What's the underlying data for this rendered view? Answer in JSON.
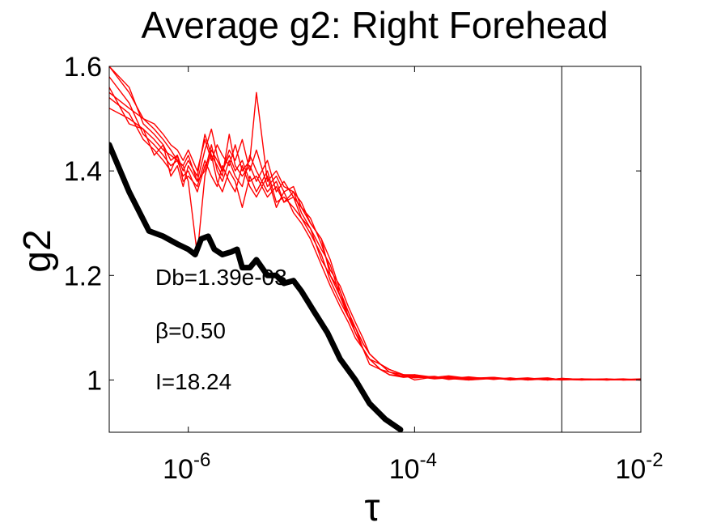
{
  "chart_data": {
    "type": "line",
    "title": "Average g2: Right Forehead",
    "xlabel": "τ",
    "ylabel": "g2",
    "xscale": "log",
    "xlim": [
      2e-07,
      0.01
    ],
    "ylim": [
      0.9,
      1.6
    ],
    "grid": false,
    "x_ticks": [
      {
        "value": 1e-06,
        "base": "10",
        "exp": "-6"
      },
      {
        "value": 0.0001,
        "base": "10",
        "exp": "-4"
      },
      {
        "value": 0.01,
        "base": "10",
        "exp": "-2"
      }
    ],
    "y_ticks": [
      {
        "value": 1.0,
        "label": "1"
      },
      {
        "value": 1.2,
        "label": "1.2"
      },
      {
        "value": 1.4,
        "label": "1.4"
      },
      {
        "value": 1.6,
        "label": "1.6"
      }
    ],
    "vline": {
      "x": 0.002,
      "color": "#000000"
    },
    "annotations": [
      "Db=1.39e-03",
      "β=0.50",
      "I=18.24"
    ],
    "colors": {
      "measured": "#ff0000",
      "fit": "#000000"
    },
    "fit_curve": {
      "color": "#000000",
      "x": [
        2e-07,
        3e-07,
        4.5e-07,
        6e-07,
        8e-07,
        1e-06,
        1.15e-06,
        1.3e-06,
        1.5e-06,
        1.7e-06,
        2e-06,
        2.4e-06,
        2.7e-06,
        3e-06,
        3.5e-06,
        4e-06,
        5e-06,
        6e-06,
        7e-06,
        8.5e-06,
        1e-05,
        1.3e-05,
        1.7e-05,
        2.2e-05,
        3e-05,
        4e-05,
        5.5e-05,
        7.5e-05
      ],
      "y": [
        1.45,
        1.36,
        1.285,
        1.275,
        1.26,
        1.25,
        1.24,
        1.27,
        1.275,
        1.25,
        1.24,
        1.245,
        1.25,
        1.215,
        1.215,
        1.23,
        1.2,
        1.2,
        1.185,
        1.19,
        1.17,
        1.13,
        1.09,
        1.04,
        1.0,
        0.955,
        0.925,
        0.905
      ]
    },
    "series": [
      {
        "x": [
          2e-07,
          3e-07,
          4e-07,
          5e-07,
          6e-07,
          7e-07,
          8e-07,
          9e-07,
          1e-06,
          1.2e-06,
          1.4e-06,
          1.6e-06,
          1.8e-06,
          2e-06,
          2.3e-06,
          2.6e-06,
          3e-06,
          3.5e-06,
          4e-06,
          5e-06,
          6e-06,
          7e-06,
          8.5e-06,
          1e-05,
          1.2e-05,
          1.5e-05,
          1.8e-05,
          2.2e-05,
          2.6e-05,
          3e-05,
          3.5e-05,
          4e-05,
          5e-05,
          6e-05,
          8e-05,
          0.0001,
          0.00015,
          0.0002,
          0.0003,
          0.0005,
          0.0007,
          0.001,
          0.0015,
          0.002,
          0.003,
          0.005,
          0.007,
          0.01
        ],
        "y": [
          1.6,
          1.56,
          1.49,
          1.47,
          1.45,
          1.42,
          1.43,
          1.4,
          1.42,
          1.39,
          1.47,
          1.43,
          1.41,
          1.39,
          1.47,
          1.41,
          1.39,
          1.41,
          1.38,
          1.42,
          1.36,
          1.38,
          1.35,
          1.33,
          1.3,
          1.27,
          1.2,
          1.17,
          1.12,
          1.1,
          1.06,
          1.04,
          1.03,
          1.02,
          1.01,
          1.01,
          1.005,
          1.008,
          1.003,
          1.005,
          1.002,
          1.004,
          1.0,
          1.003,
          1.001,
          1.002,
          1.0,
          1.001
        ]
      },
      {
        "x": [
          2e-07,
          3e-07,
          4e-07,
          5e-07,
          6e-07,
          7e-07,
          8e-07,
          9e-07,
          1e-06,
          1.2e-06,
          1.4e-06,
          1.6e-06,
          1.8e-06,
          2e-06,
          2.3e-06,
          2.6e-06,
          3e-06,
          3.5e-06,
          4e-06,
          5e-06,
          6e-06,
          7e-06,
          8.5e-06,
          1e-05,
          1.2e-05,
          1.5e-05,
          1.8e-05,
          2.2e-05,
          2.6e-05,
          3e-05,
          3.5e-05,
          4e-05,
          5e-05,
          6e-05,
          8e-05,
          0.0001,
          0.00015,
          0.0002,
          0.0003,
          0.0005,
          0.0007,
          0.001,
          0.0015,
          0.002,
          0.003,
          0.005,
          0.007,
          0.01
        ],
        "y": [
          1.55,
          1.52,
          1.5,
          1.48,
          1.46,
          1.44,
          1.42,
          1.41,
          1.43,
          1.38,
          1.44,
          1.48,
          1.43,
          1.4,
          1.44,
          1.42,
          1.46,
          1.4,
          1.44,
          1.37,
          1.39,
          1.36,
          1.37,
          1.33,
          1.31,
          1.26,
          1.21,
          1.18,
          1.14,
          1.11,
          1.08,
          1.05,
          1.03,
          1.02,
          1.01,
          1.005,
          1.007,
          1.002,
          1.006,
          1.001,
          1.004,
          1.0,
          1.003,
          1.001,
          1.002,
          1.0,
          1.001,
          1.0
        ]
      },
      {
        "x": [
          2e-07,
          3e-07,
          4e-07,
          5e-07,
          6e-07,
          7e-07,
          8e-07,
          9e-07,
          1e-06,
          1.2e-06,
          1.4e-06,
          1.6e-06,
          1.8e-06,
          2e-06,
          2.3e-06,
          2.6e-06,
          3e-06,
          3.5e-06,
          4e-06,
          5e-06,
          6e-06,
          7e-06,
          8.5e-06,
          1e-05,
          1.2e-05,
          1.5e-05,
          1.8e-05,
          2.2e-05,
          2.6e-05,
          3e-05,
          3.5e-05,
          4e-05,
          5e-05,
          6e-05,
          8e-05,
          0.0001,
          0.00015,
          0.0002,
          0.0003,
          0.0005,
          0.0007,
          0.001,
          0.0015,
          0.002,
          0.003,
          0.005,
          0.007,
          0.01
        ],
        "y": [
          1.58,
          1.53,
          1.47,
          1.45,
          1.43,
          1.41,
          1.42,
          1.39,
          1.4,
          1.36,
          1.41,
          1.43,
          1.38,
          1.36,
          1.4,
          1.38,
          1.33,
          1.39,
          1.36,
          1.4,
          1.34,
          1.35,
          1.33,
          1.31,
          1.28,
          1.24,
          1.19,
          1.15,
          1.12,
          1.09,
          1.06,
          1.04,
          1.02,
          1.015,
          1.01,
          1.0,
          1.006,
          1.003,
          1.0,
          1.004,
          1.001,
          1.003,
          1.0,
          1.002,
          1.0,
          1.001,
          1.0,
          1.0
        ]
      },
      {
        "x": [
          2e-07,
          3e-07,
          4e-07,
          5e-07,
          6e-07,
          7e-07,
          8e-07,
          9e-07,
          1e-06,
          1.2e-06,
          1.4e-06,
          1.6e-06,
          1.8e-06,
          2e-06,
          2.3e-06,
          2.6e-06,
          3e-06,
          3.5e-06,
          4e-06,
          5e-06,
          6e-06,
          7e-06,
          8.5e-06,
          1e-05,
          1.2e-05,
          1.5e-05,
          1.8e-05,
          2.2e-05,
          2.6e-05,
          3e-05,
          3.5e-05,
          4e-05,
          5e-05,
          6e-05,
          8e-05,
          0.0001,
          0.00015,
          0.0002,
          0.0003,
          0.0005,
          0.0007,
          0.001,
          0.0015,
          0.002,
          0.003,
          0.005,
          0.007,
          0.01
        ],
        "y": [
          1.52,
          1.5,
          1.48,
          1.46,
          1.44,
          1.43,
          1.42,
          1.41,
          1.38,
          1.24,
          1.39,
          1.44,
          1.42,
          1.4,
          1.43,
          1.4,
          1.42,
          1.38,
          1.39,
          1.35,
          1.37,
          1.34,
          1.36,
          1.32,
          1.29,
          1.25,
          1.22,
          1.16,
          1.13,
          1.1,
          1.07,
          1.05,
          1.03,
          1.02,
          1.01,
          1.008,
          1.003,
          1.006,
          1.002,
          1.005,
          1.0,
          1.002,
          1.004,
          1.0,
          1.002,
          1.001,
          1.002,
          1.0
        ]
      },
      {
        "x": [
          2e-07,
          3e-07,
          4e-07,
          5e-07,
          6e-07,
          7e-07,
          8e-07,
          9e-07,
          1e-06,
          1.2e-06,
          1.4e-06,
          1.6e-06,
          1.8e-06,
          2e-06,
          2.3e-06,
          2.6e-06,
          3e-06,
          3.5e-06,
          4e-06,
          5e-06,
          6e-06,
          7e-06,
          8.5e-06,
          1e-05,
          1.2e-05,
          1.5e-05,
          1.8e-05,
          2.2e-05,
          2.6e-05,
          3e-05,
          3.5e-05,
          4e-05,
          5e-05,
          6e-05,
          8e-05,
          0.0001,
          0.00015,
          0.0002,
          0.0003,
          0.0005,
          0.0007,
          0.001,
          0.0015,
          0.002,
          0.003,
          0.005,
          0.007,
          0.01
        ],
        "y": [
          1.6,
          1.55,
          1.5,
          1.49,
          1.47,
          1.45,
          1.44,
          1.42,
          1.44,
          1.4,
          1.46,
          1.42,
          1.45,
          1.43,
          1.41,
          1.45,
          1.4,
          1.42,
          1.55,
          1.38,
          1.4,
          1.37,
          1.36,
          1.34,
          1.3,
          1.27,
          1.23,
          1.17,
          1.13,
          1.09,
          1.06,
          1.04,
          1.02,
          1.01,
          1.005,
          1.007,
          1.002,
          1.004,
          1.0,
          1.003,
          1.001,
          1.002,
          1.0,
          1.003,
          1.001,
          1.0,
          1.001,
          1.0
        ]
      },
      {
        "x": [
          2e-07,
          3e-07,
          4e-07,
          5e-07,
          6e-07,
          7e-07,
          8e-07,
          9e-07,
          1e-06,
          1.2e-06,
          1.4e-06,
          1.6e-06,
          1.8e-06,
          2e-06,
          2.3e-06,
          2.6e-06,
          3e-06,
          3.5e-06,
          4e-06,
          5e-06,
          6e-06,
          7e-06,
          8.5e-06,
          1e-05,
          1.2e-05,
          1.5e-05,
          1.8e-05,
          2.2e-05,
          2.6e-05,
          3e-05,
          3.5e-05,
          4e-05,
          5e-05,
          6e-05,
          8e-05,
          0.0001,
          0.00015,
          0.0002,
          0.0003,
          0.0005,
          0.0007,
          0.001,
          0.0015,
          0.002,
          0.003,
          0.005,
          0.007,
          0.01
        ],
        "y": [
          1.54,
          1.51,
          1.46,
          1.44,
          1.42,
          1.4,
          1.43,
          1.38,
          1.39,
          1.37,
          1.42,
          1.39,
          1.37,
          1.41,
          1.38,
          1.36,
          1.41,
          1.37,
          1.35,
          1.39,
          1.33,
          1.36,
          1.32,
          1.3,
          1.27,
          1.22,
          1.18,
          1.14,
          1.11,
          1.08,
          1.06,
          1.03,
          1.02,
          1.01,
          1.008,
          1.004,
          1.006,
          1.001,
          1.005,
          1.002,
          1.003,
          1.0,
          1.002,
          1.001,
          1.0,
          1.002,
          1.0,
          1.001
        ]
      },
      {
        "x": [
          2e-07,
          3e-07,
          4e-07,
          5e-07,
          6e-07,
          7e-07,
          8e-07,
          9e-07,
          1e-06,
          1.2e-06,
          1.4e-06,
          1.6e-06,
          1.8e-06,
          2e-06,
          2.3e-06,
          2.6e-06,
          3e-06,
          3.5e-06,
          4e-06,
          5e-06,
          6e-06,
          7e-06,
          8.5e-06,
          1e-05,
          1.2e-05,
          1.5e-05,
          1.8e-05,
          2.2e-05,
          2.6e-05,
          3e-05,
          3.5e-05,
          4e-05,
          5e-05,
          6e-05,
          8e-05,
          0.0001,
          0.00015,
          0.0002,
          0.0003,
          0.0005,
          0.0007,
          0.001,
          0.0015,
          0.002,
          0.003,
          0.005,
          0.007,
          0.01
        ],
        "y": [
          1.56,
          1.49,
          1.48,
          1.43,
          1.45,
          1.39,
          1.41,
          1.37,
          1.41,
          1.38,
          1.4,
          1.45,
          1.4,
          1.38,
          1.42,
          1.39,
          1.37,
          1.43,
          1.4,
          1.36,
          1.38,
          1.34,
          1.35,
          1.31,
          1.29,
          1.23,
          1.2,
          1.16,
          1.12,
          1.1,
          1.07,
          1.05,
          1.03,
          1.015,
          1.006,
          1.01,
          1.003,
          1.005,
          1.001,
          1.004,
          1.0,
          1.003,
          1.001,
          1.0,
          1.002,
          1.0,
          1.001,
          1.002
        ]
      }
    ]
  }
}
